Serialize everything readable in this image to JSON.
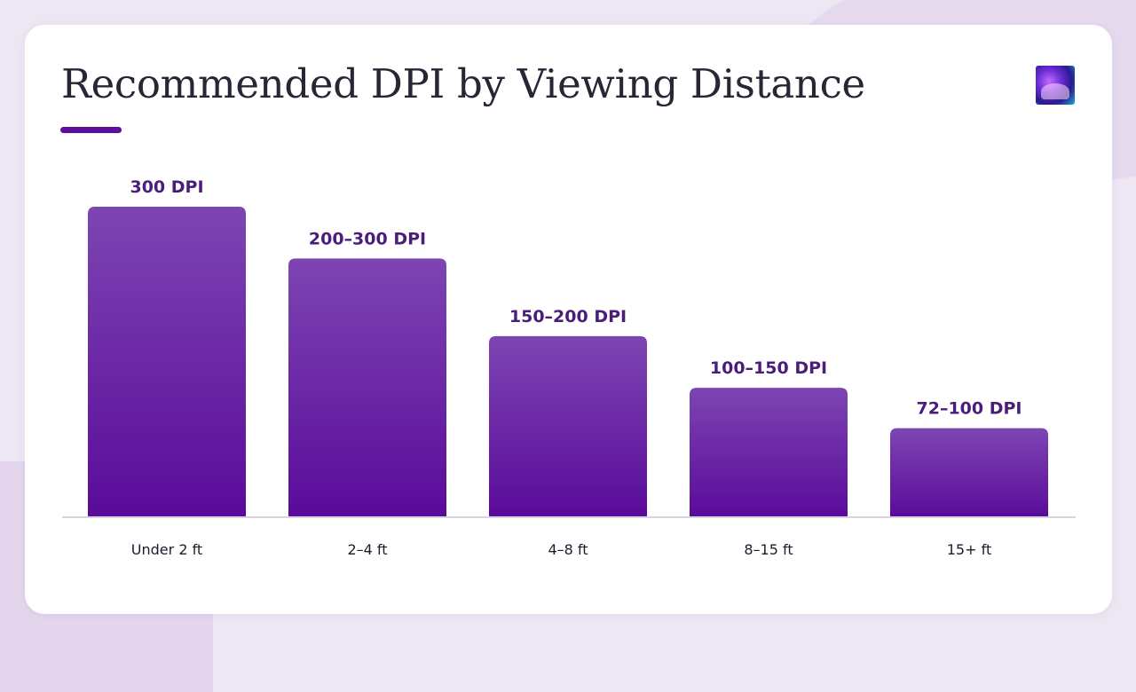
{
  "slide": {
    "title": "Recommended DPI by Viewing Distance",
    "logo_icon": "gallery-logo-icon",
    "colors": {
      "accent": "#5b0f9c",
      "bar_top": "#7d45b2",
      "bar_bottom": "#5a0b9a",
      "label": "#4a1d7a",
      "baseline": "#d9d2e2"
    }
  },
  "chart_data": {
    "type": "bar",
    "title": "Recommended DPI by Viewing Distance",
    "xlabel": "",
    "ylabel": "",
    "ylim": [
      0,
      300
    ],
    "grid": false,
    "categories": [
      "Under 2 ft",
      "2–4 ft",
      "4–8 ft",
      "8–15 ft",
      "15+ ft"
    ],
    "values": [
      300,
      250,
      175,
      125,
      86
    ],
    "data_labels": [
      "300 DPI",
      "200–300 DPI",
      "150–200 DPI",
      "100–150 DPI",
      "72–100 DPI"
    ]
  }
}
